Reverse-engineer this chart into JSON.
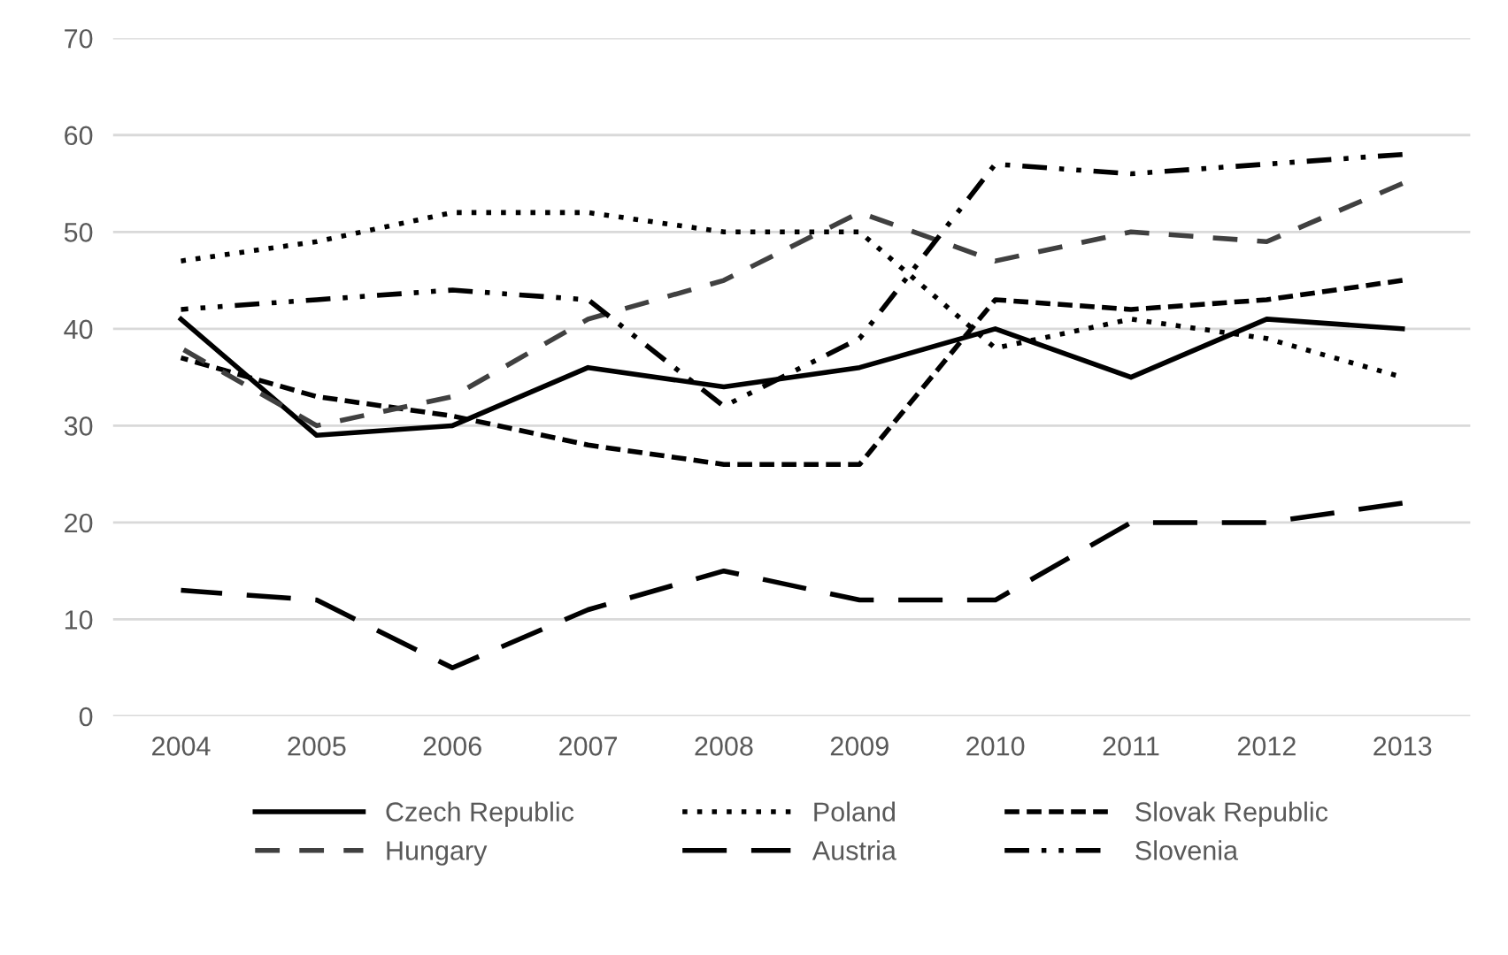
{
  "chart_data": {
    "type": "line",
    "categories": [
      "2004",
      "2005",
      "2006",
      "2007",
      "2008",
      "2009",
      "2010",
      "2011",
      "2012",
      "2013"
    ],
    "series": [
      {
        "name": "Czech Republic",
        "color": "#000000",
        "line_style": "solid",
        "values": [
          41,
          29,
          30,
          36,
          34,
          36,
          40,
          35,
          41,
          40
        ]
      },
      {
        "name": "Poland",
        "color": "#000000",
        "line_style": "dotted",
        "values": [
          47,
          49,
          52,
          52,
          50,
          50,
          38,
          41,
          39,
          35
        ]
      },
      {
        "name": "Slovak Republic",
        "color": "#000000",
        "line_style": "dashed",
        "values": [
          37,
          33,
          31,
          28,
          26,
          26,
          43,
          42,
          43,
          45
        ]
      },
      {
        "name": "Hungary",
        "color": "#404040",
        "line_style": "dashed",
        "values": [
          38,
          30,
          33,
          41,
          45,
          52,
          47,
          50,
          49,
          55
        ]
      },
      {
        "name": "Austria",
        "color": "#000000",
        "line_style": "dashed",
        "values": [
          13,
          12,
          5,
          11,
          15,
          12,
          12,
          20,
          20,
          22
        ]
      },
      {
        "name": "Slovenia",
        "color": "#000000",
        "line_style": "dashdot",
        "values": [
          42,
          43,
          44,
          43,
          32,
          39,
          57,
          56,
          57,
          58
        ]
      }
    ],
    "ylim": [
      0,
      70
    ],
    "yticks": [
      0,
      10,
      20,
      30,
      40,
      50,
      60,
      70
    ],
    "grid": "y",
    "legend": "bottom",
    "marker": "none"
  }
}
